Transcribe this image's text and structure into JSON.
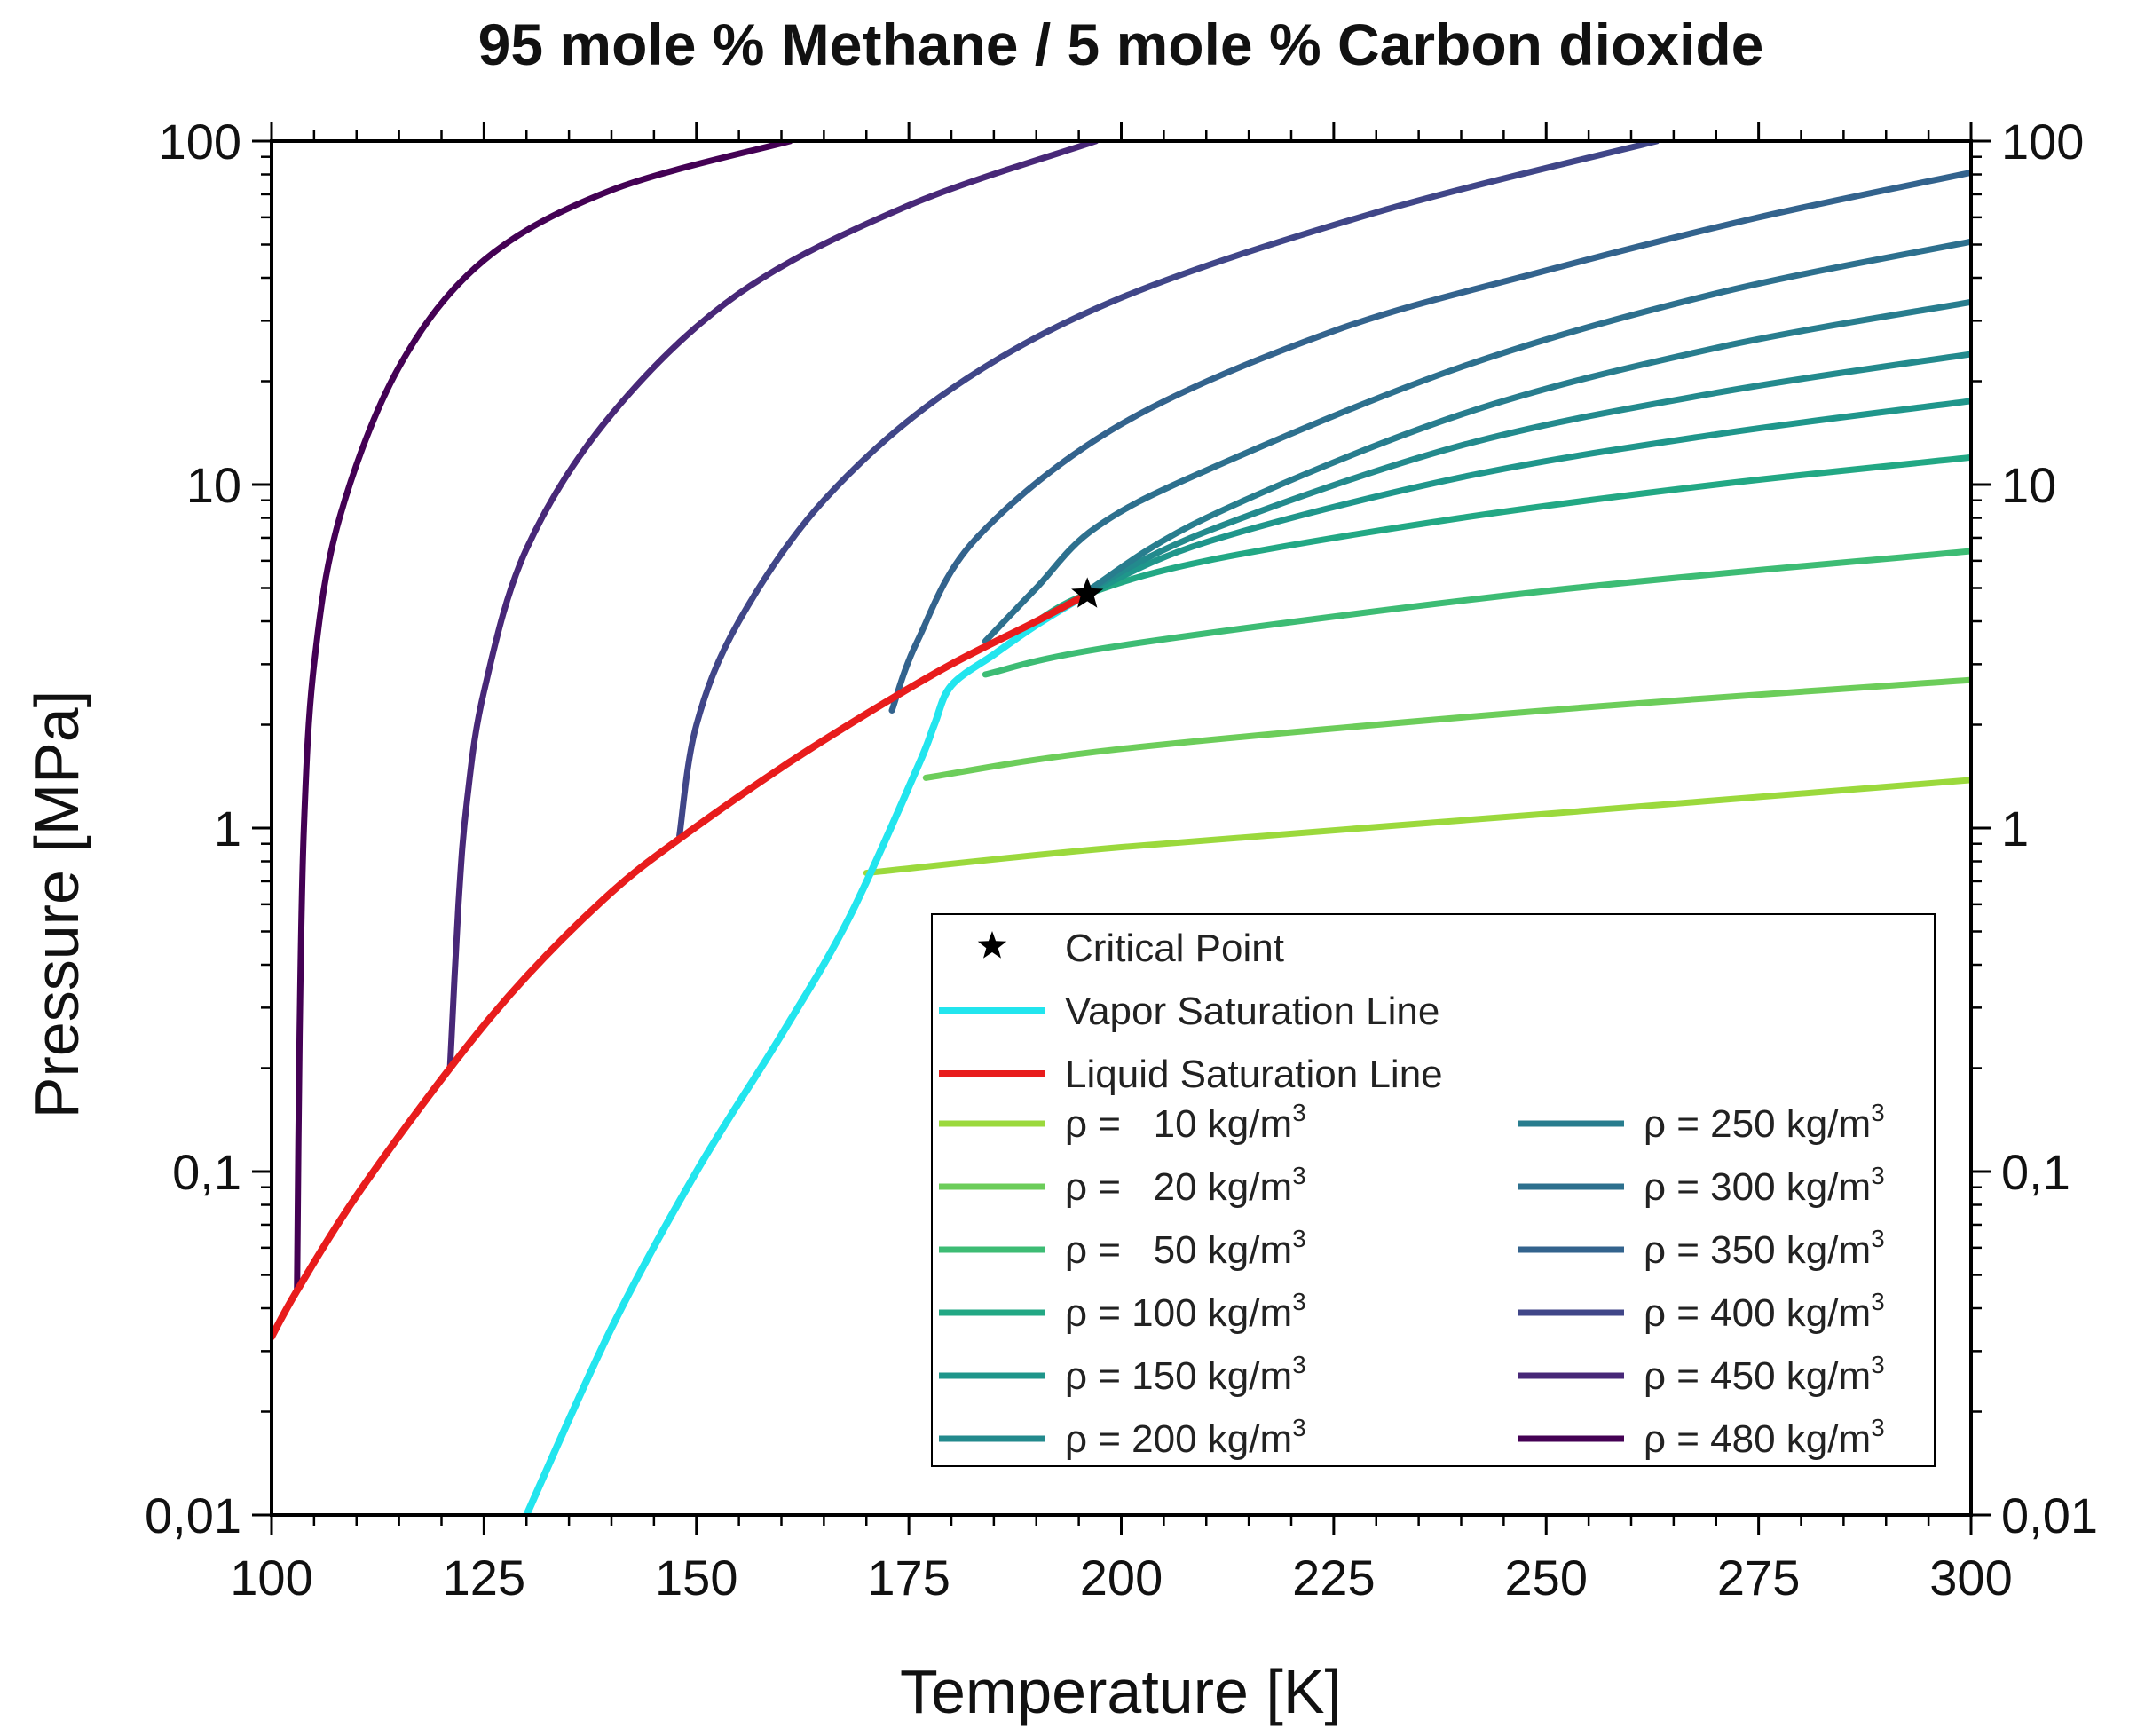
{
  "chart_data": {
    "type": "line",
    "title": "95 mole % Methane / 5 mole % Carbon dioxide",
    "xlabel": "Temperature [K]",
    "ylabel": "Pressure [MPa]",
    "xlim": [
      100,
      300
    ],
    "ylim": [
      0.01,
      100
    ],
    "yscale": "log",
    "grid": false,
    "legend_position": "bottom-right",
    "x_ticks": [
      {
        "v": 100,
        "label": "100"
      },
      {
        "v": 125,
        "label": "125"
      },
      {
        "v": 150,
        "label": "150"
      },
      {
        "v": 175,
        "label": "175"
      },
      {
        "v": 200,
        "label": "200"
      },
      {
        "v": 225,
        "label": "225"
      },
      {
        "v": 250,
        "label": "250"
      },
      {
        "v": 275,
        "label": "275"
      },
      {
        "v": 300,
        "label": "300"
      }
    ],
    "y_ticks": [
      {
        "v": 0.01,
        "label": "0,01"
      },
      {
        "v": 0.1,
        "label": "0,1"
      },
      {
        "v": 1,
        "label": "1"
      },
      {
        "v": 10,
        "label": "10"
      },
      {
        "v": 100,
        "label": "100"
      }
    ],
    "critical_point": {
      "label": "Critical Point",
      "x": 196,
      "y": 4.8,
      "color": "#000000"
    },
    "saturation_lines": [
      {
        "name": "Vapor Saturation Line",
        "color": "#22e5ee",
        "x": [
          130,
          140,
          150,
          160,
          168,
          176,
          178,
          180,
          185,
          190,
          196
        ],
        "y": [
          0.01,
          0.035,
          0.1,
          0.25,
          0.55,
          1.5,
          2.0,
          2.6,
          3.2,
          3.9,
          4.8
        ]
      },
      {
        "name": "Liquid Saturation Line",
        "color": "#e81c1c",
        "x": [
          100,
          103,
          110,
          121,
          130,
          140,
          148,
          160,
          170,
          180,
          190,
          196
        ],
        "y": [
          0.033,
          0.045,
          0.085,
          0.2,
          0.37,
          0.65,
          0.93,
          1.5,
          2.15,
          3.0,
          4.0,
          4.8
        ]
      }
    ],
    "series": [
      {
        "name": "ρ =   10 kg/m",
        "sup": "3",
        "color": "#9bd93c",
        "x": [
          170,
          200,
          250,
          300
        ],
        "y": [
          0.74,
          0.88,
          1.1,
          1.38
        ]
      },
      {
        "name": "ρ =   20 kg/m",
        "sup": "3",
        "color": "#6ccd5a",
        "x": [
          177,
          200,
          250,
          300
        ],
        "y": [
          1.4,
          1.7,
          2.2,
          2.7
        ]
      },
      {
        "name": "ρ =   50 kg/m",
        "sup": "3",
        "color": "#3dbc74",
        "x": [
          184,
          200,
          250,
          300
        ],
        "y": [
          2.8,
          3.4,
          4.9,
          6.4
        ]
      },
      {
        "name": "ρ = 100 kg/m",
        "sup": "3",
        "color": "#22a884",
        "x": [
          190,
          196,
          210,
          240,
          270,
          300
        ],
        "y": [
          4.0,
          4.8,
          6.0,
          8.0,
          10.0,
          12.0
        ]
      },
      {
        "name": "ρ = 150 kg/m",
        "sup": "3",
        "color": "#1f968b",
        "x": [
          196,
          210,
          240,
          270,
          300
        ],
        "y": [
          4.8,
          6.8,
          10.5,
          14.0,
          17.5
        ]
      },
      {
        "name": "ρ = 200 kg/m",
        "sup": "3",
        "color": "#238a8d",
        "x": [
          196,
          210,
          240,
          270,
          300
        ],
        "y": [
          4.9,
          7.3,
          13.0,
          18.5,
          24.0
        ]
      },
      {
        "name": "ρ = 250 kg/m",
        "sup": "3",
        "color": "#287d8e",
        "x": [
          196,
          210,
          240,
          270,
          300
        ],
        "y": [
          4.9,
          8.0,
          16.0,
          25.0,
          34.0
        ]
      },
      {
        "name": "ρ = 300 kg/m",
        "sup": "3",
        "color": "#2d708e",
        "x": [
          184,
          190,
          197,
          210,
          240,
          270,
          300
        ],
        "y": [
          3.5,
          5.0,
          7.5,
          11.0,
          22.0,
          36.0,
          51.0
        ]
      },
      {
        "name": "ρ = 350 kg/m",
        "sup": "3",
        "color": "#33638d",
        "x": [
          173,
          176,
          183,
          200,
          225,
          250,
          275,
          300
        ],
        "y": [
          2.2,
          3.5,
          7.0,
          15.0,
          28.0,
          42.0,
          60.0,
          81.0
        ]
      },
      {
        "name": "ρ = 400 kg/m",
        "sup": "3",
        "color": "#404688",
        "x": [
          148,
          150,
          155,
          165,
          180,
          200,
          230,
          263
        ],
        "y": [
          0.95,
          2.0,
          4.0,
          9.0,
          19.0,
          35.0,
          62.0,
          100
        ]
      },
      {
        "name": "ρ = 450 kg/m",
        "sup": "3",
        "color": "#482878",
        "x": [
          121,
          122,
          123,
          125,
          130,
          140,
          155,
          175,
          197
        ],
        "y": [
          0.2,
          0.6,
          1.2,
          2.5,
          6.5,
          16.0,
          36.0,
          65.0,
          100
        ]
      },
      {
        "name": "ρ = 480 kg/m",
        "sup": "3",
        "color": "#440154",
        "x": [
          103,
          103.3,
          103.8,
          105,
          108,
          115,
          125,
          140,
          161
        ],
        "y": [
          0.045,
          0.25,
          1.0,
          3.0,
          8.0,
          22.0,
          45.0,
          72.0,
          100
        ]
      }
    ]
  }
}
